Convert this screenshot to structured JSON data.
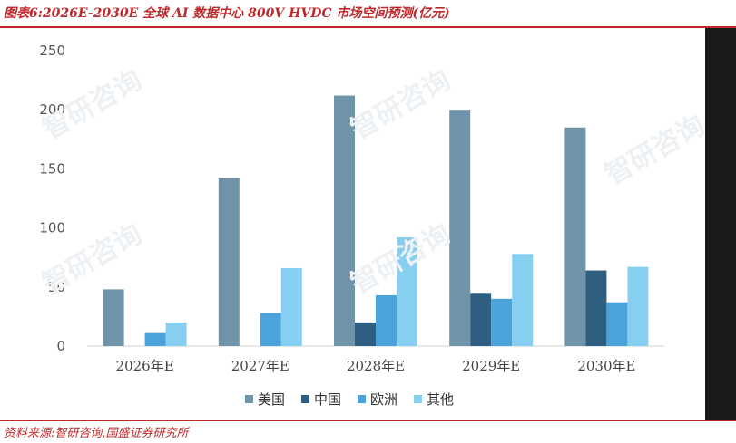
{
  "title": "图表6:2026E-2030E 全球 AI 数据中心 800V HVDC 市场空间预测(亿元)",
  "source": "资料来源:智研咨询,国盛证券研究所",
  "watermark_text": "智研咨询",
  "chart_data": {
    "type": "bar",
    "title": "",
    "xlabel": "",
    "ylabel": "",
    "ylim": [
      0,
      250
    ],
    "yticks": [
      0,
      50,
      100,
      150,
      200,
      250
    ],
    "grid": false,
    "legend_position": "bottom",
    "categories": [
      "2026年E",
      "2027年E",
      "2028年E",
      "2029年E",
      "2030年E"
    ],
    "series": [
      {
        "name": "美国",
        "color": "#6f93a8",
        "values": [
          48,
          142,
          212,
          200,
          185
        ]
      },
      {
        "name": "中国",
        "color": "#2e5f80",
        "values": [
          0,
          0,
          20,
          45,
          64
        ]
      },
      {
        "name": "欧洲",
        "color": "#4ba3da",
        "values": [
          11,
          28,
          43,
          40,
          37
        ]
      },
      {
        "name": "其他",
        "color": "#86cff0",
        "values": [
          20,
          66,
          92,
          78,
          67
        ]
      }
    ]
  }
}
